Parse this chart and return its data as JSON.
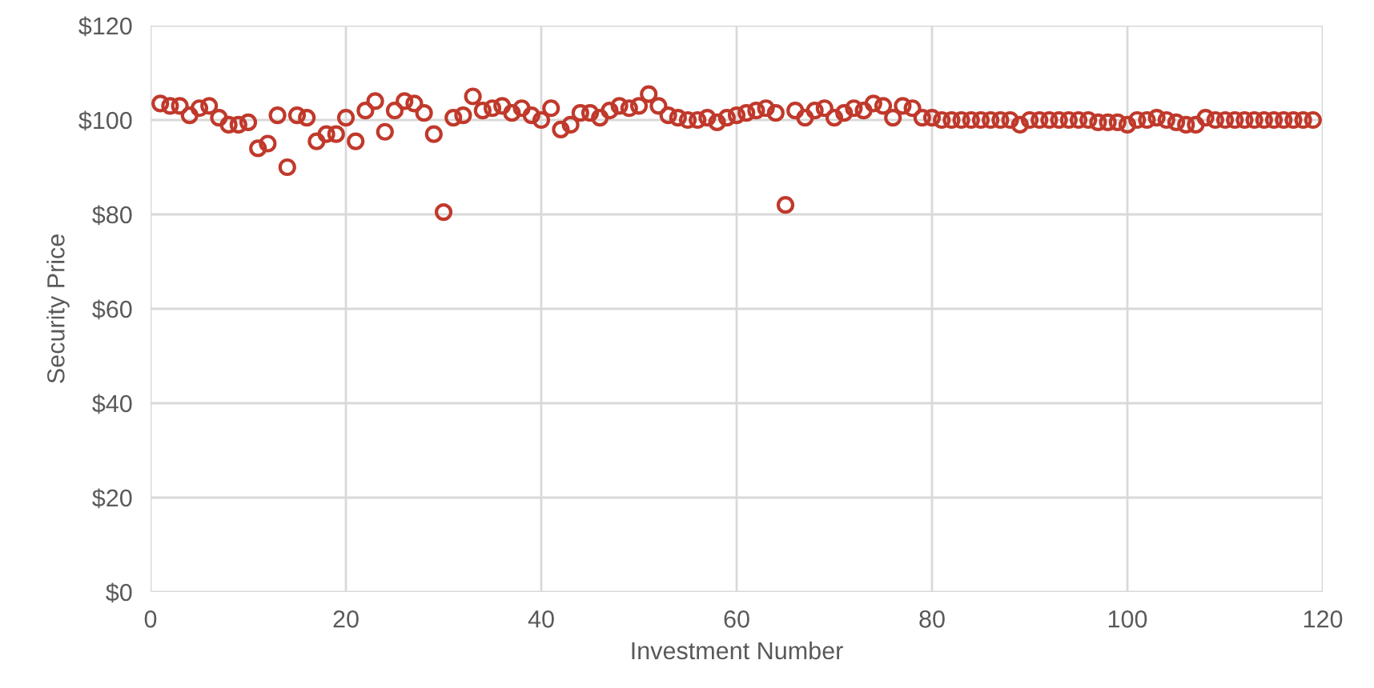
{
  "chart_data": {
    "type": "scatter",
    "xlabel": "Investment Number",
    "ylabel": "Security Price",
    "x": [
      1,
      2,
      3,
      4,
      5,
      6,
      7,
      8,
      9,
      10,
      11,
      12,
      13,
      14,
      15,
      16,
      17,
      18,
      19,
      20,
      21,
      22,
      23,
      24,
      25,
      26,
      27,
      28,
      29,
      30,
      31,
      32,
      33,
      34,
      35,
      36,
      37,
      38,
      39,
      40,
      41,
      42,
      43,
      44,
      45,
      46,
      47,
      48,
      49,
      50,
      51,
      52,
      53,
      54,
      55,
      56,
      57,
      58,
      59,
      60,
      61,
      62,
      63,
      64,
      65,
      66,
      67,
      68,
      69,
      70,
      71,
      72,
      73,
      74,
      75,
      76,
      77,
      78,
      79,
      80,
      81,
      82,
      83,
      84,
      85,
      86,
      87,
      88,
      89,
      90,
      91,
      92,
      93,
      94,
      95,
      96,
      97,
      98,
      99,
      100,
      101,
      102,
      103,
      104,
      105,
      106,
      107,
      108,
      109,
      110,
      111,
      112,
      113,
      114,
      115,
      116,
      117,
      118,
      119
    ],
    "series": [
      {
        "color": "#c0392b",
        "values": [
          103.5,
          103,
          103,
          101,
          102.5,
          103,
          100.5,
          99,
          99,
          99.5,
          94,
          95,
          101,
          90,
          101,
          100.5,
          95.5,
          97,
          97,
          100.5,
          95.5,
          102,
          104,
          97.5,
          102,
          104,
          103.5,
          101.5,
          97,
          80.5,
          100.5,
          101,
          105,
          102,
          102.5,
          103,
          101.5,
          102.5,
          101,
          100,
          102.5,
          98,
          99,
          101.5,
          101.5,
          100.5,
          102,
          103,
          102.5,
          103,
          105.5,
          103,
          101,
          100.5,
          100,
          100,
          100.5,
          99.5,
          100.5,
          101,
          101.5,
          102,
          102.5,
          101.5,
          82,
          102,
          100.5,
          102,
          102.5,
          100.5,
          101.5,
          102.5,
          102,
          103.5,
          103,
          100.5,
          103,
          102.5,
          100.5,
          100.5,
          100,
          100,
          100,
          100,
          100,
          100,
          100,
          100,
          99,
          100,
          100,
          100,
          100,
          100,
          100,
          100,
          99.5,
          99.5,
          99.5,
          99,
          100,
          100,
          100.5,
          100,
          99.5,
          99,
          99,
          100.5,
          100,
          100,
          100,
          100,
          100,
          100,
          100,
          100,
          100,
          100,
          100
        ]
      }
    ],
    "xlim": [
      0,
      120
    ],
    "xticks": [
      0,
      20,
      40,
      60,
      80,
      100,
      120
    ],
    "ylim": [
      0,
      120
    ],
    "yticks": [
      {
        "value": 0,
        "label": "$0"
      },
      {
        "value": 20,
        "label": "$20"
      },
      {
        "value": 40,
        "label": "$40"
      },
      {
        "value": 60,
        "label": "$60"
      },
      {
        "value": 80,
        "label": "$80"
      },
      {
        "value": 100,
        "label": "$100"
      },
      {
        "value": 120,
        "label": "$120"
      }
    ],
    "grid": true,
    "marker": "circle",
    "legend": false
  }
}
